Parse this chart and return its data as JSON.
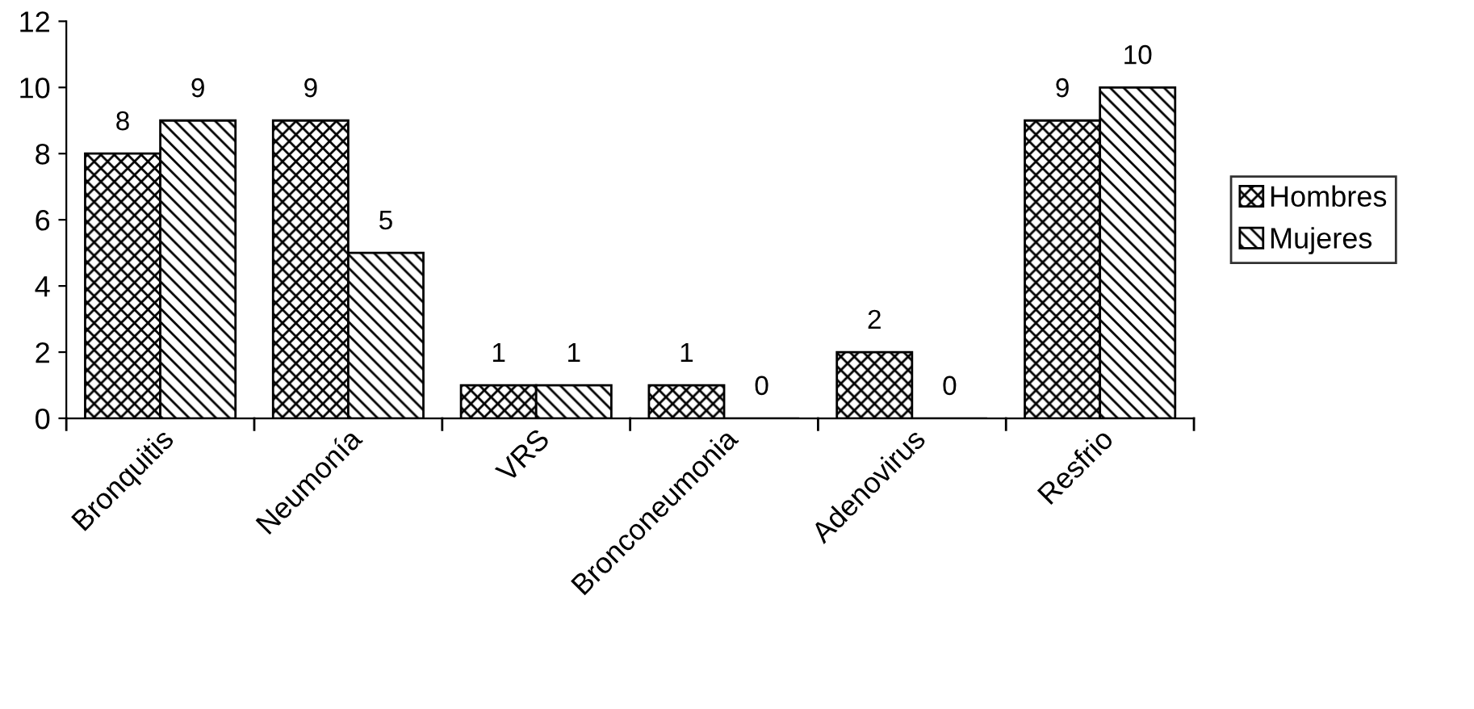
{
  "chart_data": {
    "type": "bar",
    "categories": [
      "Bronquitis",
      "Neumonía",
      "VRS",
      "Bronconeumonia",
      "Adenovirus",
      "Resfrio"
    ],
    "series": [
      {
        "name": "Hombres",
        "color": "#000000",
        "values": [
          8,
          9,
          1,
          1,
          2,
          9
        ]
      },
      {
        "name": "Mujeres",
        "color": "#000000",
        "values": [
          9,
          5,
          1,
          0,
          0,
          10
        ]
      }
    ],
    "ylim": [
      0,
      12
    ],
    "yticks": [
      0,
      2,
      4,
      6,
      8,
      10,
      12
    ],
    "grid": false,
    "legend": "right",
    "data_labels": true
  }
}
